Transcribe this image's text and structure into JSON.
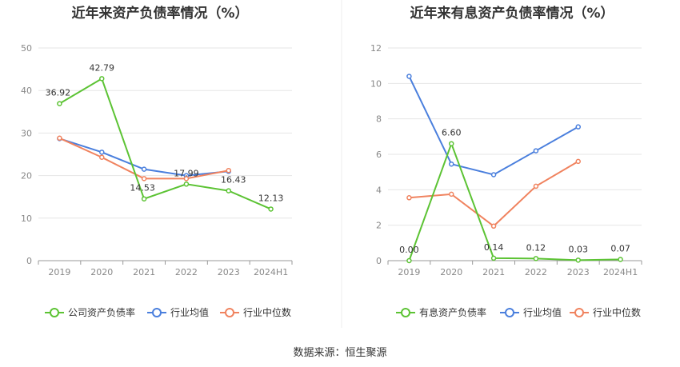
{
  "chart_data": [
    {
      "type": "line",
      "title": "近年来资产负债率情况（%）",
      "categories": [
        "2019",
        "2020",
        "2021",
        "2022",
        "2023",
        "2024H1"
      ],
      "ylim": [
        0,
        50
      ],
      "yticks": [
        0,
        10,
        20,
        30,
        40,
        50
      ],
      "grid": true,
      "legend_position": "bottom",
      "series": [
        {
          "name": "公司资产负债率",
          "color": "#5cc334",
          "values": [
            36.92,
            42.79,
            14.53,
            17.99,
            16.43,
            12.13
          ],
          "labels": [
            "36.92",
            "42.79",
            "14.53",
            "17.99",
            "16.43",
            "12.13"
          ]
        },
        {
          "name": "行业均值",
          "color": "#4a7fdd",
          "values": [
            28.7,
            25.5,
            21.5,
            20.0,
            21.0,
            null
          ]
        },
        {
          "name": "行业中位数",
          "color": "#f0835f",
          "values": [
            28.8,
            24.3,
            19.3,
            19.3,
            21.2,
            null
          ]
        }
      ]
    },
    {
      "type": "line",
      "title": "近年来有息资产负债率情况（%）",
      "categories": [
        "2019",
        "2020",
        "2021",
        "2022",
        "2023",
        "2024H1"
      ],
      "ylim": [
        0,
        12
      ],
      "yticks": [
        0,
        2,
        4,
        6,
        8,
        10,
        12
      ],
      "grid": true,
      "legend_position": "bottom",
      "series": [
        {
          "name": "有息资产负债率",
          "color": "#5cc334",
          "values": [
            0.0,
            6.6,
            0.14,
            0.12,
            0.03,
            0.07
          ],
          "labels": [
            "0.00",
            "6.60",
            "0.14",
            "0.12",
            "0.03",
            "0.07"
          ]
        },
        {
          "name": "行业均值",
          "color": "#4a7fdd",
          "values": [
            10.4,
            5.45,
            4.85,
            6.2,
            7.55,
            null
          ]
        },
        {
          "name": "行业中位数",
          "color": "#f0835f",
          "values": [
            3.55,
            3.75,
            1.95,
            4.2,
            5.6,
            null
          ]
        }
      ]
    }
  ],
  "footer": {
    "source": "数据来源：恒生聚源"
  }
}
